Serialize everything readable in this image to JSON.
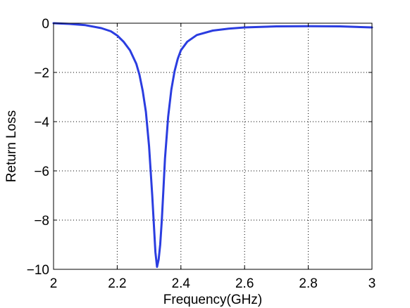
{
  "chart_data": {
    "type": "line",
    "title": "",
    "xlabel": "Frequency(GHz)",
    "ylabel": "Return Loss",
    "xlim": [
      2,
      3
    ],
    "ylim": [
      -10,
      0
    ],
    "xticks": [
      2,
      2.2,
      2.4,
      2.6,
      2.8,
      3
    ],
    "xtick_labels": [
      "2",
      "2.2",
      "2.4",
      "2.6",
      "2.8",
      "3"
    ],
    "yticks": [
      0,
      -2,
      -4,
      -6,
      -8,
      -10
    ],
    "ytick_labels": [
      "0",
      "−2",
      "−4",
      "−6",
      "−8",
      "−10"
    ],
    "grid": true,
    "series": [
      {
        "color": "#2b3de0",
        "x": [
          2.0,
          2.05,
          2.1,
          2.15,
          2.18,
          2.2,
          2.22,
          2.24,
          2.26,
          2.27,
          2.28,
          2.29,
          2.3,
          2.31,
          2.32,
          2.325,
          2.33,
          2.335,
          2.34,
          2.345,
          2.35,
          2.36,
          2.37,
          2.38,
          2.39,
          2.4,
          2.42,
          2.45,
          2.5,
          2.55,
          2.6,
          2.7,
          2.8,
          2.9,
          3.0
        ],
        "y": [
          0.0,
          -0.03,
          -0.08,
          -0.2,
          -0.33,
          -0.5,
          -0.75,
          -1.1,
          -1.65,
          -2.1,
          -2.75,
          -3.6,
          -5.0,
          -7.0,
          -9.3,
          -9.9,
          -9.6,
          -9.0,
          -8.0,
          -6.8,
          -5.5,
          -3.8,
          -2.7,
          -1.95,
          -1.45,
          -1.1,
          -0.75,
          -0.48,
          -0.3,
          -0.22,
          -0.17,
          -0.13,
          -0.12,
          -0.13,
          -0.17
        ]
      }
    ]
  }
}
